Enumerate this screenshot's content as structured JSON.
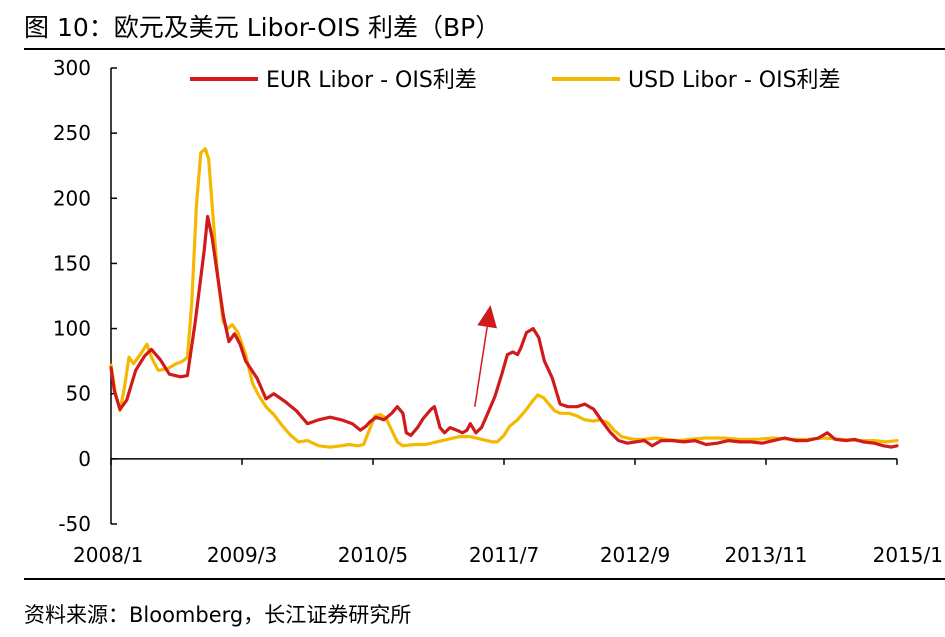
{
  "header": {
    "title": "图 10：欧元及美元 Libor-OIS 利差（BP）"
  },
  "footer": {
    "source": "资料来源：Bloomberg，长江证券研究所"
  },
  "colors": {
    "eur": "#d11a1a",
    "usd": "#f5b800",
    "annotation": "#d11a1a",
    "axis": "#000000"
  },
  "chart_data": {
    "type": "line",
    "title": "欧元及美元 Libor-OIS 利差（BP）",
    "xlabel": "",
    "ylabel": "",
    "ylim": [
      -50,
      300
    ],
    "yticks": [
      -50,
      0,
      50,
      100,
      150,
      200,
      250,
      300
    ],
    "xlim": [
      2008.0,
      2015.0
    ],
    "xticks": [
      {
        "label": "2008/1",
        "x": 2008.0
      },
      {
        "label": "2009/3",
        "x": 2009.1667
      },
      {
        "label": "2010/5",
        "x": 2010.3333
      },
      {
        "label": "2011/7",
        "x": 2011.5
      },
      {
        "label": "2012/9",
        "x": 2012.6667
      },
      {
        "label": "2013/11",
        "x": 2013.8333
      },
      {
        "label": "2015/1",
        "x": 2015.0
      }
    ],
    "legend_position": "top",
    "annotation": {
      "type": "arrow",
      "from": [
        2011.24,
        40
      ],
      "to": [
        2011.38,
        118
      ]
    },
    "series": [
      {
        "name": "EUR Libor - OIS利差",
        "points": [
          [
            2008.0,
            70
          ],
          [
            2008.03,
            52
          ],
          [
            2008.08,
            38
          ],
          [
            2008.14,
            45
          ],
          [
            2008.22,
            68
          ],
          [
            2008.3,
            79
          ],
          [
            2008.36,
            84
          ],
          [
            2008.44,
            76
          ],
          [
            2008.52,
            65
          ],
          [
            2008.62,
            63
          ],
          [
            2008.68,
            64
          ],
          [
            2008.75,
            105
          ],
          [
            2008.83,
            160
          ],
          [
            2008.86,
            186
          ],
          [
            2008.9,
            170
          ],
          [
            2008.95,
            140
          ],
          [
            2009.0,
            110
          ],
          [
            2009.05,
            90
          ],
          [
            2009.1,
            96
          ],
          [
            2009.15,
            88
          ],
          [
            2009.2,
            75
          ],
          [
            2009.3,
            62
          ],
          [
            2009.38,
            46
          ],
          [
            2009.45,
            50
          ],
          [
            2009.55,
            44
          ],
          [
            2009.65,
            37
          ],
          [
            2009.75,
            27
          ],
          [
            2009.85,
            30
          ],
          [
            2009.95,
            32
          ],
          [
            2010.05,
            30
          ],
          [
            2010.15,
            27
          ],
          [
            2010.22,
            22
          ],
          [
            2010.27,
            25
          ],
          [
            2010.3,
            28
          ],
          [
            2010.36,
            32
          ],
          [
            2010.43,
            30
          ],
          [
            2010.5,
            35
          ],
          [
            2010.55,
            40
          ],
          [
            2010.6,
            35
          ],
          [
            2010.63,
            20
          ],
          [
            2010.67,
            18
          ],
          [
            2010.73,
            24
          ],
          [
            2010.78,
            31
          ],
          [
            2010.85,
            38
          ],
          [
            2010.88,
            40
          ],
          [
            2010.93,
            24
          ],
          [
            2010.97,
            20
          ],
          [
            2011.02,
            24
          ],
          [
            2011.08,
            22
          ],
          [
            2011.13,
            20
          ],
          [
            2011.17,
            22
          ],
          [
            2011.2,
            27
          ],
          [
            2011.25,
            20
          ],
          [
            2011.3,
            24
          ],
          [
            2011.35,
            34
          ],
          [
            2011.42,
            48
          ],
          [
            2011.48,
            65
          ],
          [
            2011.53,
            80
          ],
          [
            2011.58,
            82
          ],
          [
            2011.62,
            80
          ],
          [
            2011.65,
            85
          ],
          [
            2011.7,
            97
          ],
          [
            2011.76,
            100
          ],
          [
            2011.81,
            93
          ],
          [
            2011.86,
            75
          ],
          [
            2011.93,
            62
          ],
          [
            2012.0,
            42
          ],
          [
            2012.07,
            40
          ],
          [
            2012.15,
            40
          ],
          [
            2012.22,
            42
          ],
          [
            2012.3,
            38
          ],
          [
            2012.38,
            28
          ],
          [
            2012.45,
            20
          ],
          [
            2012.52,
            14
          ],
          [
            2012.6,
            12
          ],
          [
            2012.67,
            13
          ],
          [
            2012.75,
            14
          ],
          [
            2012.82,
            10
          ],
          [
            2012.9,
            14
          ],
          [
            2013.0,
            14
          ],
          [
            2013.1,
            13
          ],
          [
            2013.2,
            14
          ],
          [
            2013.3,
            11
          ],
          [
            2013.4,
            12
          ],
          [
            2013.5,
            14
          ],
          [
            2013.6,
            13
          ],
          [
            2013.7,
            13
          ],
          [
            2013.8,
            12
          ],
          [
            2013.9,
            14
          ],
          [
            2014.0,
            16
          ],
          [
            2014.1,
            14
          ],
          [
            2014.2,
            14
          ],
          [
            2014.3,
            16
          ],
          [
            2014.38,
            20
          ],
          [
            2014.45,
            15
          ],
          [
            2014.55,
            14
          ],
          [
            2014.62,
            15
          ],
          [
            2014.7,
            13
          ],
          [
            2014.8,
            12
          ],
          [
            2014.88,
            10
          ],
          [
            2014.95,
            9
          ],
          [
            2015.0,
            10
          ]
        ]
      },
      {
        "name": "USD Libor - OIS利差",
        "points": [
          [
            2008.0,
            72
          ],
          [
            2008.04,
            50
          ],
          [
            2008.08,
            37
          ],
          [
            2008.12,
            55
          ],
          [
            2008.16,
            78
          ],
          [
            2008.2,
            73
          ],
          [
            2008.26,
            80
          ],
          [
            2008.32,
            88
          ],
          [
            2008.36,
            78
          ],
          [
            2008.42,
            68
          ],
          [
            2008.5,
            69
          ],
          [
            2008.58,
            73
          ],
          [
            2008.64,
            75
          ],
          [
            2008.68,
            78
          ],
          [
            2008.72,
            120
          ],
          [
            2008.76,
            193
          ],
          [
            2008.8,
            235
          ],
          [
            2008.84,
            238
          ],
          [
            2008.87,
            230
          ],
          [
            2008.9,
            195
          ],
          [
            2008.95,
            140
          ],
          [
            2009.0,
            105
          ],
          [
            2009.04,
            100
          ],
          [
            2009.08,
            103
          ],
          [
            2009.13,
            97
          ],
          [
            2009.2,
            80
          ],
          [
            2009.26,
            58
          ],
          [
            2009.32,
            48
          ],
          [
            2009.38,
            40
          ],
          [
            2009.45,
            34
          ],
          [
            2009.52,
            26
          ],
          [
            2009.6,
            18
          ],
          [
            2009.67,
            13
          ],
          [
            2009.75,
            14
          ],
          [
            2009.85,
            10
          ],
          [
            2009.95,
            9
          ],
          [
            2010.05,
            10
          ],
          [
            2010.12,
            11
          ],
          [
            2010.2,
            10
          ],
          [
            2010.25,
            11
          ],
          [
            2010.3,
            22
          ],
          [
            2010.35,
            33
          ],
          [
            2010.4,
            34
          ],
          [
            2010.45,
            31
          ],
          [
            2010.5,
            22
          ],
          [
            2010.55,
            13
          ],
          [
            2010.6,
            10
          ],
          [
            2010.7,
            11
          ],
          [
            2010.8,
            11
          ],
          [
            2010.9,
            13
          ],
          [
            2011.0,
            15
          ],
          [
            2011.1,
            17
          ],
          [
            2011.2,
            17
          ],
          [
            2011.3,
            15
          ],
          [
            2011.4,
            13
          ],
          [
            2011.44,
            13
          ],
          [
            2011.5,
            18
          ],
          [
            2011.55,
            25
          ],
          [
            2011.62,
            30
          ],
          [
            2011.7,
            38
          ],
          [
            2011.76,
            45
          ],
          [
            2011.8,
            49
          ],
          [
            2011.85,
            47
          ],
          [
            2011.9,
            42
          ],
          [
            2011.95,
            37
          ],
          [
            2012.0,
            35
          ],
          [
            2012.08,
            35
          ],
          [
            2012.15,
            33
          ],
          [
            2012.22,
            30
          ],
          [
            2012.3,
            29
          ],
          [
            2012.35,
            30
          ],
          [
            2012.42,
            28
          ],
          [
            2012.48,
            22
          ],
          [
            2012.55,
            17
          ],
          [
            2012.65,
            15
          ],
          [
            2012.75,
            15
          ],
          [
            2012.85,
            16
          ],
          [
            2012.95,
            15
          ],
          [
            2013.05,
            14
          ],
          [
            2013.15,
            15
          ],
          [
            2013.3,
            16
          ],
          [
            2013.45,
            16
          ],
          [
            2013.6,
            15
          ],
          [
            2013.75,
            15
          ],
          [
            2013.9,
            16
          ],
          [
            2014.05,
            15
          ],
          [
            2014.2,
            15
          ],
          [
            2014.35,
            16
          ],
          [
            2014.5,
            15
          ],
          [
            2014.65,
            14
          ],
          [
            2014.8,
            14
          ],
          [
            2014.9,
            13
          ],
          [
            2015.0,
            14
          ]
        ]
      }
    ]
  }
}
